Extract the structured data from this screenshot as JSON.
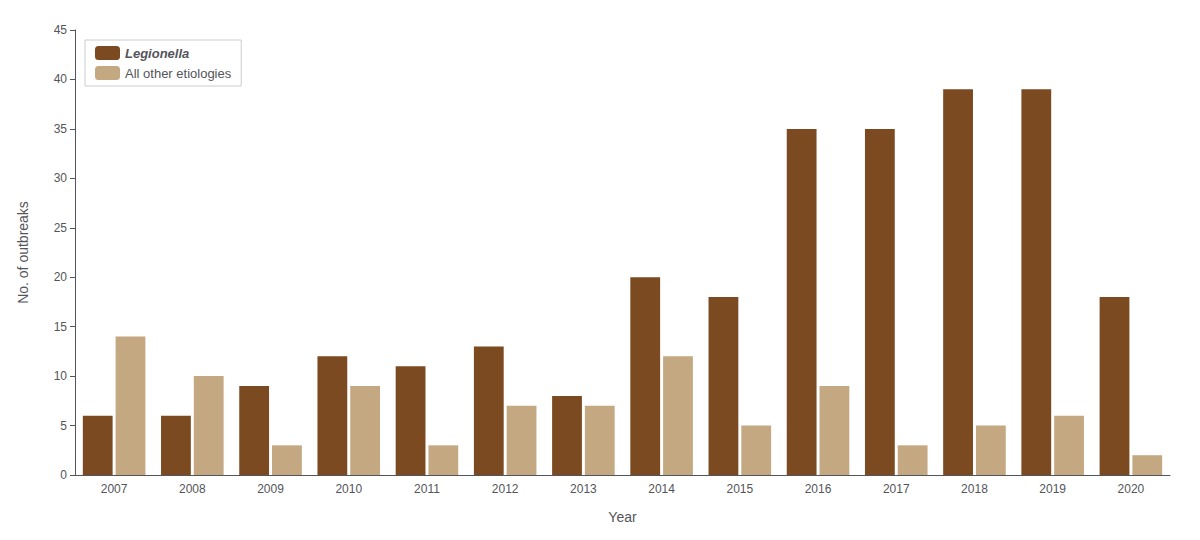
{
  "chart_data": {
    "type": "bar",
    "xlabel": "Year",
    "ylabel": "No. of outbreaks",
    "categories": [
      "2007",
      "2008",
      "2009",
      "2010",
      "2011",
      "2012",
      "2013",
      "2014",
      "2015",
      "2016",
      "2017",
      "2018",
      "2019",
      "2020"
    ],
    "series": [
      {
        "name": "Legionella",
        "color": "#7B4A20",
        "values": [
          6,
          6,
          9,
          12,
          11,
          13,
          8,
          20,
          18,
          35,
          35,
          39,
          39,
          18
        ]
      },
      {
        "name": "All other etiologies",
        "color": "#C4A882",
        "values": [
          14,
          10,
          3,
          9,
          3,
          7,
          7,
          12,
          5,
          9,
          3,
          5,
          6,
          2
        ]
      }
    ],
    "ylim": [
      0,
      45
    ],
    "yticks": [
      0,
      5,
      10,
      15,
      20,
      25,
      30,
      35,
      40,
      45
    ],
    "grid": false,
    "legend": "upper left"
  }
}
